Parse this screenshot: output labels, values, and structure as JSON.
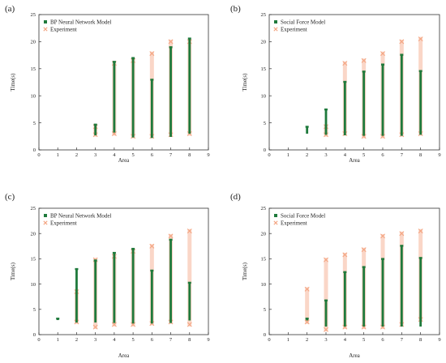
{
  "colors": {
    "model": "#1f7a3c",
    "experiment": "#f4a582",
    "axis": "#333333"
  },
  "chart_data": [
    {
      "type": "scatter",
      "panel_label": "(a)",
      "xlabel": "Area",
      "ylabel": "Time(s)",
      "xlim": [
        0,
        9
      ],
      "ylim": [
        0,
        25
      ],
      "xticks": [
        0,
        1,
        2,
        3,
        4,
        5,
        6,
        7,
        8,
        9
      ],
      "yticks": [
        0,
        5,
        10,
        15,
        20,
        25
      ],
      "grid": false,
      "legend_position": "top-left",
      "series": [
        {
          "name": "BP Neural Network Model",
          "marker": "square",
          "color": "#1f7a3c",
          "ranges": [
            {
              "area": 3,
              "min": 2.7,
              "max": 4.7
            },
            {
              "area": 4,
              "min": 3.2,
              "max": 16.3
            },
            {
              "area": 5,
              "min": 2.3,
              "max": 17.0
            },
            {
              "area": 6,
              "min": 2.2,
              "max": 13.0
            },
            {
              "area": 7,
              "min": 2.4,
              "max": 19.0
            },
            {
              "area": 8,
              "min": 3.0,
              "max": 20.6
            }
          ]
        },
        {
          "name": "Experiment",
          "marker": "x",
          "color": "#f4a582",
          "ranges": [
            {
              "area": 3,
              "min": 2.8,
              "max": 4.3
            },
            {
              "area": 4,
              "min": 3.0,
              "max": 16.0
            },
            {
              "area": 5,
              "min": 2.5,
              "max": 16.5
            },
            {
              "area": 6,
              "min": 2.5,
              "max": 17.8
            },
            {
              "area": 7,
              "min": 2.8,
              "max": 20.0
            },
            {
              "area": 8,
              "min": 3.0,
              "max": 20.0
            }
          ]
        }
      ]
    },
    {
      "type": "scatter",
      "panel_label": "(b)",
      "xlabel": "Area",
      "ylabel": "Time(s)",
      "xlim": [
        0,
        9
      ],
      "ylim": [
        0,
        25
      ],
      "xticks": [
        0,
        1,
        2,
        3,
        4,
        5,
        6,
        7,
        8,
        9
      ],
      "yticks": [
        0,
        5,
        10,
        15,
        20,
        25
      ],
      "grid": false,
      "legend_position": "top-left",
      "series": [
        {
          "name": "Social Force Model",
          "marker": "square",
          "color": "#1f7a3c",
          "ranges": [
            {
              "area": 2,
              "min": 3.0,
              "max": 4.3
            },
            {
              "area": 3,
              "min": 2.8,
              "max": 7.5
            },
            {
              "area": 4,
              "min": 2.7,
              "max": 12.6
            },
            {
              "area": 5,
              "min": 2.6,
              "max": 14.5
            },
            {
              "area": 6,
              "min": 2.6,
              "max": 15.8
            },
            {
              "area": 7,
              "min": 2.6,
              "max": 17.6
            },
            {
              "area": 8,
              "min": 2.8,
              "max": 14.6
            }
          ]
        },
        {
          "name": "Experiment",
          "marker": "x",
          "color": "#f4a582",
          "ranges": [
            {
              "area": 3,
              "min": 2.8,
              "max": 4.3
            },
            {
              "area": 4,
              "min": 3.0,
              "max": 16.0
            },
            {
              "area": 5,
              "min": 2.5,
              "max": 16.5
            },
            {
              "area": 6,
              "min": 2.5,
              "max": 17.8
            },
            {
              "area": 7,
              "min": 2.8,
              "max": 20.0
            },
            {
              "area": 8,
              "min": 3.0,
              "max": 20.5
            }
          ]
        }
      ]
    },
    {
      "type": "scatter",
      "panel_label": "(c)",
      "xlabel": "Area",
      "ylabel": "Time(s)",
      "xlim": [
        0,
        9
      ],
      "ylim": [
        0,
        25
      ],
      "xticks": [
        0,
        1,
        2,
        3,
        4,
        5,
        6,
        7,
        8,
        9
      ],
      "yticks": [
        0,
        5,
        10,
        15,
        20,
        25
      ],
      "grid": false,
      "legend_position": "top-left",
      "series": [
        {
          "name": "BP Neural Network Model",
          "marker": "square",
          "color": "#1f7a3c",
          "ranges": [
            {
              "area": 1,
              "min": 3.2,
              "max": 3.2
            },
            {
              "area": 2,
              "min": 2.4,
              "max": 13.0
            },
            {
              "area": 3,
              "min": 2.4,
              "max": 14.7
            },
            {
              "area": 4,
              "min": 2.3,
              "max": 16.2
            },
            {
              "area": 5,
              "min": 2.2,
              "max": 17.0
            },
            {
              "area": 6,
              "min": 2.2,
              "max": 12.7
            },
            {
              "area": 7,
              "min": 2.3,
              "max": 18.8
            },
            {
              "area": 8,
              "min": 2.8,
              "max": 10.3
            }
          ]
        },
        {
          "name": "Experiment",
          "marker": "x",
          "color": "#f4a582",
          "ranges": [
            {
              "area": 2,
              "min": 2.5,
              "max": 8.5
            },
            {
              "area": 3,
              "min": 1.5,
              "max": 14.8
            },
            {
              "area": 4,
              "min": 2.0,
              "max": 15.5
            },
            {
              "area": 5,
              "min": 2.0,
              "max": 16.5
            },
            {
              "area": 6,
              "min": 2.2,
              "max": 17.5
            },
            {
              "area": 7,
              "min": 2.5,
              "max": 19.5
            },
            {
              "area": 8,
              "min": 2.0,
              "max": 20.5
            }
          ]
        }
      ]
    },
    {
      "type": "scatter",
      "panel_label": "(d)",
      "xlabel": "Area",
      "ylabel": "Time(s)",
      "xlim": [
        0,
        9
      ],
      "ylim": [
        0,
        25
      ],
      "xticks": [
        0,
        1,
        2,
        3,
        4,
        5,
        6,
        7,
        8,
        9
      ],
      "yticks": [
        0,
        5,
        10,
        15,
        20,
        25
      ],
      "grid": false,
      "legend_position": "top-left",
      "series": [
        {
          "name": "Social Force Model",
          "marker": "square",
          "color": "#1f7a3c",
          "ranges": [
            {
              "area": 2,
              "min": 2.8,
              "max": 3.2
            },
            {
              "area": 3,
              "min": 1.6,
              "max": 6.8
            },
            {
              "area": 4,
              "min": 1.6,
              "max": 12.4
            },
            {
              "area": 5,
              "min": 1.6,
              "max": 13.4
            },
            {
              "area": 6,
              "min": 1.6,
              "max": 15.0
            },
            {
              "area": 7,
              "min": 1.6,
              "max": 17.6
            },
            {
              "area": 8,
              "min": 1.6,
              "max": 15.2
            }
          ]
        },
        {
          "name": "Experiment",
          "marker": "x",
          "color": "#f4a582",
          "ranges": [
            {
              "area": 2,
              "min": 2.5,
              "max": 9.0
            },
            {
              "area": 3,
              "min": 1.0,
              "max": 14.8
            },
            {
              "area": 4,
              "min": 1.5,
              "max": 15.8
            },
            {
              "area": 5,
              "min": 1.5,
              "max": 16.8
            },
            {
              "area": 6,
              "min": 1.5,
              "max": 19.5
            },
            {
              "area": 7,
              "min": 2.0,
              "max": 20.0
            },
            {
              "area": 8,
              "min": 3.0,
              "max": 20.5
            }
          ]
        }
      ]
    }
  ]
}
